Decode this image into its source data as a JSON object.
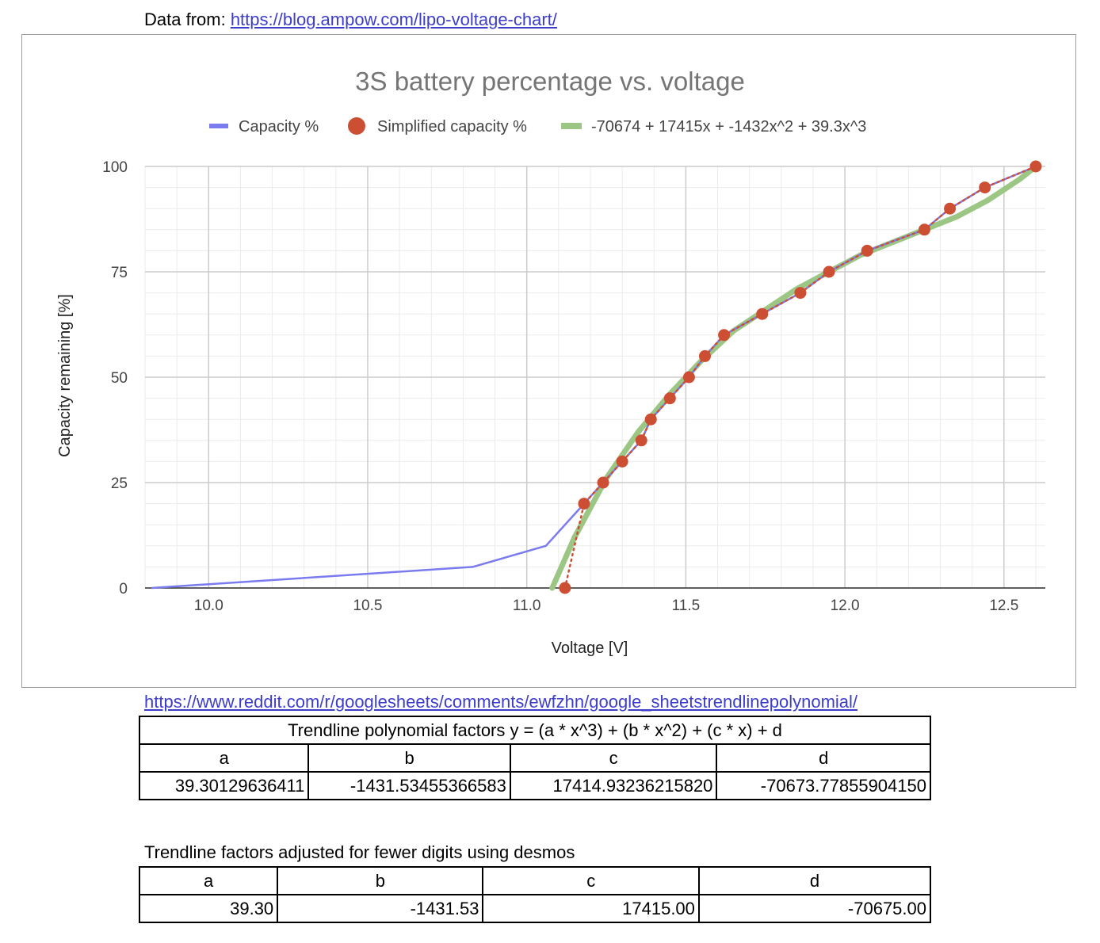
{
  "source": {
    "prefix": "Data from: ",
    "url": "https://blog.ampow.com/lipo-voltage-chart/"
  },
  "reference_link": "https://www.reddit.com/r/googlesheets/comments/ewfzhn/google_sheetstrendlinepolynomial/",
  "table1": {
    "title": "Trendline polynomial factors y = (a * x^3) + (b * x^2) + (c * x) + d",
    "headers": [
      "a",
      "b",
      "c",
      "d"
    ],
    "values": [
      "39.30129636411",
      "-1431.53455366583",
      "17414.93236215820",
      "-70673.77855904150"
    ]
  },
  "table2": {
    "caption": "Trendline factors adjusted for fewer digits using desmos",
    "headers": [
      "a",
      "b",
      "c",
      "d"
    ],
    "values": [
      "39.30",
      "-1431.53",
      "17415.00",
      "-70675.00"
    ]
  },
  "colors": {
    "capacity": "#7b7bf0",
    "simplified": "#cc4f33",
    "trendline": "#9cc683",
    "grid_major": "#cccccc",
    "grid_minor": "#ebebeb",
    "title": "#757575",
    "text": "#444444"
  },
  "chart_data": {
    "type": "line",
    "title": "3S battery percentage vs. voltage",
    "xlabel": "Voltage [V]",
    "ylabel": "Capacity remaining [%]",
    "xlim": [
      9.8,
      12.63
    ],
    "ylim": [
      0,
      100
    ],
    "x_ticks": [
      10.0,
      10.5,
      11.0,
      11.5,
      12.0,
      12.5
    ],
    "x_tick_labels": [
      "10.0",
      "10.5",
      "11.0",
      "11.5",
      "12.0",
      "12.5"
    ],
    "y_ticks": [
      0,
      25,
      50,
      75,
      100
    ],
    "y_tick_labels": [
      "0",
      "25",
      "50",
      "75",
      "100"
    ],
    "grid": true,
    "legend_position": "top",
    "series": [
      {
        "name": "Capacity %",
        "type": "line",
        "x": [
          9.82,
          10.83,
          11.06,
          11.18,
          11.24,
          11.3,
          11.36,
          11.39,
          11.45,
          11.51,
          11.56,
          11.62,
          11.74,
          11.86,
          11.95,
          12.07,
          12.25,
          12.33,
          12.44,
          12.6
        ],
        "y": [
          0,
          5,
          10,
          20,
          25,
          30,
          35,
          40,
          45,
          50,
          55,
          60,
          65,
          70,
          75,
          80,
          85,
          90,
          95,
          100
        ]
      },
      {
        "name": "Simplified capacity %",
        "type": "scatter",
        "x": [
          11.12,
          11.18,
          11.24,
          11.3,
          11.36,
          11.39,
          11.45,
          11.51,
          11.56,
          11.62,
          11.74,
          11.86,
          11.95,
          12.07,
          12.25,
          12.33,
          12.44,
          12.6
        ],
        "y": [
          0,
          20,
          25,
          30,
          35,
          40,
          45,
          50,
          55,
          60,
          65,
          70,
          75,
          80,
          85,
          90,
          95,
          100
        ]
      },
      {
        "name": "-70674 + 17415x + -1432x^2 + 39.3x^3",
        "type": "trendline",
        "x": [
          11.08,
          11.15,
          11.25,
          11.35,
          11.45,
          11.55,
          11.65,
          11.75,
          11.85,
          11.95,
          12.05,
          12.15,
          12.25,
          12.35,
          12.45,
          12.55,
          12.6
        ],
        "y": [
          0,
          12,
          26,
          37,
          46,
          54,
          61,
          66,
          71,
          75,
          79,
          82,
          85,
          88,
          92,
          97,
          100
        ]
      }
    ]
  }
}
